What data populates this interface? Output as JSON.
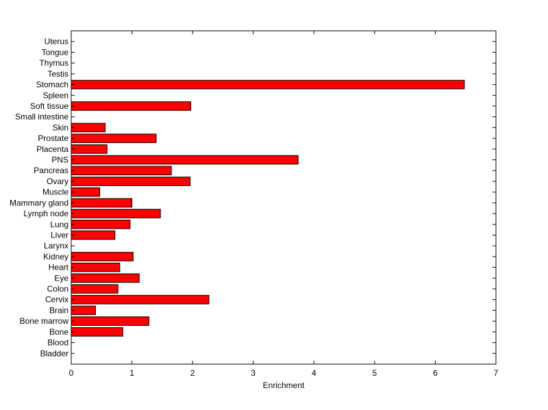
{
  "chart_data": {
    "type": "bar",
    "orientation": "horizontal",
    "categories": [
      "Bladder",
      "Blood",
      "Bone",
      "Bone marrow",
      "Brain",
      "Cervix",
      "Colon",
      "Eye",
      "Heart",
      "Kidney",
      "Larynx",
      "Liver",
      "Lung",
      "Lymph node",
      "Mammary gland",
      "Muscle",
      "Ovary",
      "Pancreas",
      "PNS",
      "Placenta",
      "Prostate",
      "Skin",
      "Small intestine",
      "Soft tissue",
      "Spleen",
      "Stomach",
      "Testis",
      "Thymus",
      "Tongue",
      "Uterus"
    ],
    "values": [
      0,
      0,
      0.85,
      1.28,
      0.4,
      2.27,
      0.77,
      1.12,
      0.8,
      1.02,
      0,
      0.72,
      0.97,
      1.47,
      1.0,
      0.47,
      1.96,
      1.65,
      3.74,
      0.59,
      1.4,
      0.56,
      0,
      1.97,
      0,
      6.48,
      0,
      0,
      0,
      0
    ],
    "xlabel": "Enrichment",
    "ylabel": "",
    "title": "",
    "xlim": [
      0,
      7
    ],
    "xticks": [
      "0",
      "1",
      "2",
      "3",
      "4",
      "5",
      "6",
      "7"
    ],
    "grid": false,
    "colors": {
      "bar": "#ff0000",
      "bar_edge": "#000000",
      "axes": "#000000"
    }
  }
}
